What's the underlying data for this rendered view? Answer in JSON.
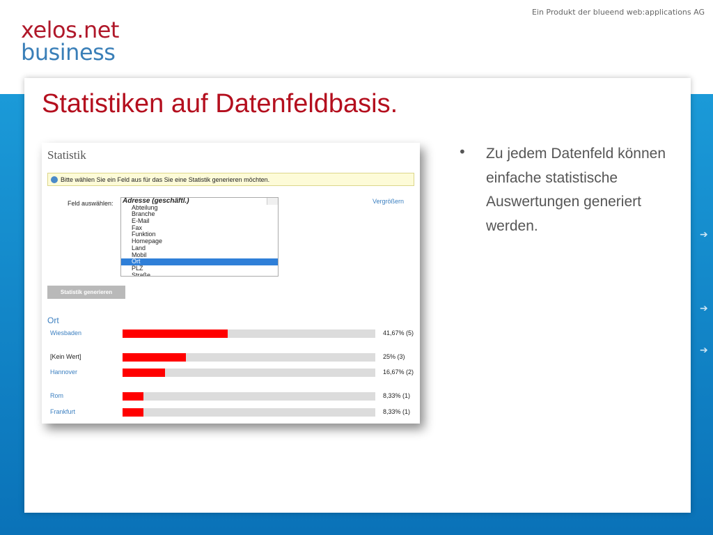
{
  "header": {
    "tagline": "Ein Produkt der blueend web:applications AG",
    "logo_top": "xelos.net",
    "logo_bottom": "business"
  },
  "slide": {
    "title": "Statistiken auf Datenfeldbasis.",
    "bullet": "Zu jedem Datenfeld können einfache statistische Auswertungen generiert werden."
  },
  "app": {
    "heading": "Statistik",
    "info": "Bitte wählen Sie ein Feld aus für das Sie eine Statistik generieren möchten.",
    "field_label": "Feld auswählen:",
    "enlarge": "Vergrößern",
    "options": [
      "Adresse (geschäftl.)",
      "Abteilung",
      "Branche",
      "E-Mail",
      "Fax",
      "Funktion",
      "Homepage",
      "Land",
      "Mobil",
      "Ort",
      "PLZ",
      "Straße"
    ],
    "selected_option": "Ort",
    "button": "Statistik generieren",
    "result_title": "Ort",
    "rows": [
      {
        "name": "Wiesbaden",
        "value": 41.67,
        "value_label": "41,67% (5)"
      },
      {
        "name": "[Kein Wert]",
        "value": 25,
        "value_label": "25% (3)"
      },
      {
        "name": "Hannover",
        "value": 16.67,
        "value_label": "16,67% (2)"
      },
      {
        "name": "Rom",
        "value": 8.33,
        "value_label": "8,33% (1)"
      },
      {
        "name": "Frankfurt",
        "value": 8.33,
        "value_label": "8,33% (1)"
      }
    ]
  }
}
